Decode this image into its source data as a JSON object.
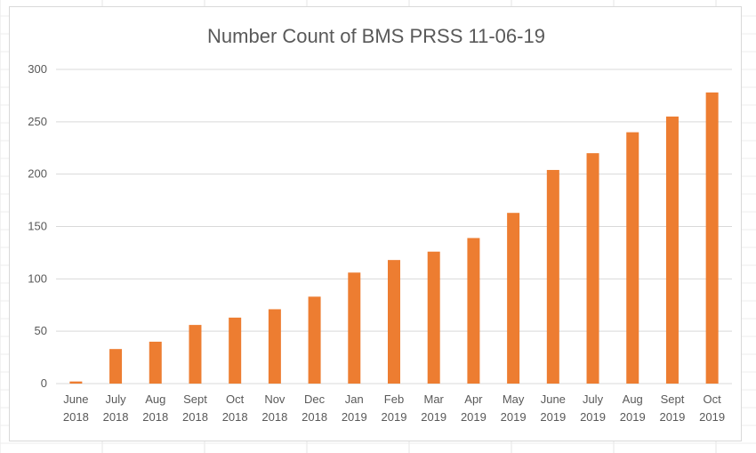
{
  "chart_data": {
    "type": "bar",
    "title": "Number Count of BMS PRSS 11-06-19",
    "xlabel": "",
    "ylabel": "",
    "categories": [
      [
        "June",
        "2018"
      ],
      [
        "July",
        "2018"
      ],
      [
        "Aug",
        "2018"
      ],
      [
        "Sept",
        "2018"
      ],
      [
        "Oct",
        "2018"
      ],
      [
        "Nov",
        "2018"
      ],
      [
        "Dec",
        "2018"
      ],
      [
        "Jan",
        "2019"
      ],
      [
        "Feb",
        "2019"
      ],
      [
        "Mar",
        "2019"
      ],
      [
        "Apr",
        "2019"
      ],
      [
        "May",
        "2019"
      ],
      [
        "June",
        "2019"
      ],
      [
        "July",
        "2019"
      ],
      [
        "Aug",
        "2019"
      ],
      [
        "Sept",
        "2019"
      ],
      [
        "Oct",
        "2019"
      ]
    ],
    "values": [
      2,
      33,
      40,
      56,
      63,
      71,
      83,
      106,
      118,
      126,
      139,
      163,
      204,
      220,
      240,
      255,
      278
    ],
    "ylim": [
      0,
      300
    ],
    "yticks": [
      "0",
      "50",
      "100",
      "150",
      "200",
      "250",
      "300"
    ],
    "grid": true,
    "legend": "none",
    "bar_color": "#ED7D31",
    "grid_color": "#D9D9D9",
    "text_color": "#595959"
  }
}
